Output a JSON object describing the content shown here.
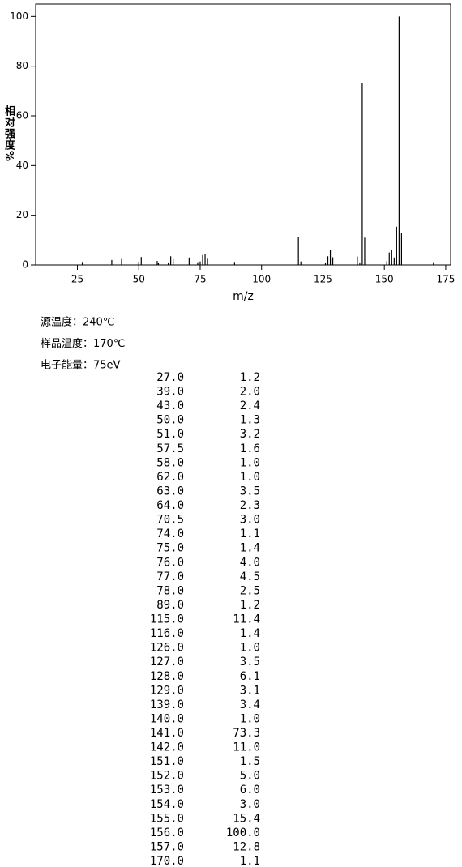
{
  "chart_data": {
    "type": "bar",
    "xlabel": "m/z",
    "ylabel": "相对强度%",
    "x": [
      27,
      39,
      43,
      50,
      51,
      57.5,
      58,
      62,
      63,
      64,
      70.5,
      74,
      75,
      76,
      77,
      78,
      89,
      115,
      116,
      126,
      127,
      128,
      129,
      139,
      140,
      141,
      142,
      151,
      152,
      153,
      154,
      155,
      156,
      157,
      170
    ],
    "x_labels": [
      "27.0",
      "39.0",
      "43.0",
      "50.0",
      "51.0",
      "57.5",
      "58.0",
      "62.0",
      "63.0",
      "64.0",
      "70.5",
      "74.0",
      "75.0",
      "76.0",
      "77.0",
      "78.0",
      "89.0",
      "115.0",
      "116.0",
      "126.0",
      "127.0",
      "128.0",
      "129.0",
      "139.0",
      "140.0",
      "141.0",
      "142.0",
      "151.0",
      "152.0",
      "153.0",
      "154.0",
      "155.0",
      "156.0",
      "157.0",
      "170.0"
    ],
    "values": [
      1.2,
      2.0,
      2.4,
      1.3,
      3.2,
      1.6,
      1.0,
      1.0,
      3.5,
      2.3,
      3.0,
      1.1,
      1.4,
      4.0,
      4.5,
      2.5,
      1.2,
      11.4,
      1.4,
      1.0,
      3.5,
      6.1,
      3.1,
      3.4,
      1.0,
      73.3,
      11.0,
      1.5,
      5.0,
      6.0,
      3.0,
      15.4,
      100.0,
      12.8,
      1.1
    ],
    "value_labels": [
      "1.2",
      "2.0",
      "2.4",
      "1.3",
      "3.2",
      "1.6",
      "1.0",
      "1.0",
      "3.5",
      "2.3",
      "3.0",
      "1.1",
      "1.4",
      "4.0",
      "4.5",
      "2.5",
      "1.2",
      "11.4",
      "1.4",
      "1.0",
      "3.5",
      "6.1",
      "3.1",
      "3.4",
      "1.0",
      "73.3",
      "11.0",
      "1.5",
      "5.0",
      "6.0",
      "3.0",
      "15.4",
      "100.0",
      "12.8",
      "1.1"
    ],
    "color": "#000000",
    "xlim": [
      8,
      177
    ],
    "xticks": [
      25,
      50,
      75,
      100,
      125,
      150,
      175
    ],
    "ylim": [
      0,
      105
    ],
    "yticks": [
      0,
      20,
      40,
      60,
      80,
      100
    ]
  },
  "info": [
    "源温度：240℃",
    "样品温度：170℃",
    "电子能量：75eV"
  ]
}
